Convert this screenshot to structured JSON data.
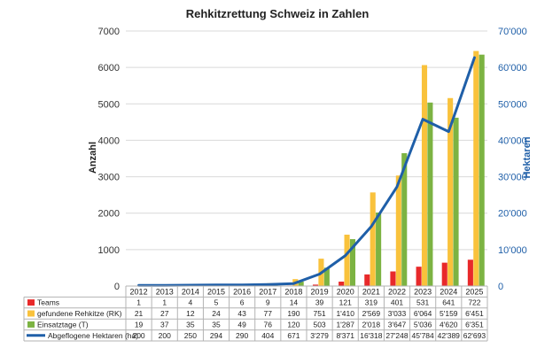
{
  "chart_data": {
    "type": "bar",
    "title": "Rehkitzrettung Schweiz in Zahlen",
    "ylabel": "Anzahl",
    "y2label": "Hektaren",
    "ylim": [
      0,
      7000
    ],
    "y2lim": [
      0,
      70000
    ],
    "yticks": [
      "0",
      "1000",
      "2000",
      "3000",
      "4000",
      "5000",
      "6000",
      "7000"
    ],
    "y2ticks": [
      "0",
      "10'000",
      "20'000",
      "30'000",
      "40'000",
      "50'000",
      "60'000",
      "70'000"
    ],
    "grid": true,
    "categories": [
      "2012",
      "2013",
      "2014",
      "2015",
      "2016",
      "2017",
      "2018",
      "2019",
      "2020",
      "2021",
      "2022",
      "2023",
      "2024",
      "2025"
    ],
    "series": [
      {
        "name": "Teams",
        "type": "bar",
        "axis": "left",
        "color": "#e8292a",
        "values": [
          1,
          1,
          4,
          5,
          6,
          9,
          14,
          39,
          121,
          319,
          401,
          531,
          641,
          722
        ],
        "labels": [
          "1",
          "1",
          "4",
          "5",
          "6",
          "9",
          "14",
          "39",
          "121",
          "319",
          "401",
          "531",
          "641",
          "722"
        ]
      },
      {
        "name": "gefundene Rehkitze (RK)",
        "type": "bar",
        "axis": "left",
        "color": "#f9c23c",
        "values": [
          21,
          27,
          12,
          24,
          43,
          77,
          190,
          751,
          1410,
          2569,
          3033,
          6064,
          5159,
          6451
        ],
        "labels": [
          "21",
          "27",
          "12",
          "24",
          "43",
          "77",
          "190",
          "751",
          "1'410",
          "2'569",
          "3'033",
          "6'064",
          "5'159",
          "6'451"
        ]
      },
      {
        "name": "Einsatztage (T)",
        "type": "bar",
        "axis": "left",
        "color": "#7cb342",
        "values": [
          19,
          37,
          35,
          35,
          49,
          76,
          120,
          503,
          1287,
          2018,
          3647,
          5036,
          4620,
          6351
        ],
        "labels": [
          "19",
          "37",
          "35",
          "35",
          "49",
          "76",
          "120",
          "503",
          "1'287",
          "2'018",
          "3'647",
          "5'036",
          "4'620",
          "6'351"
        ]
      },
      {
        "name": "Abgeflogene Hektaren (ha)",
        "type": "line",
        "axis": "right",
        "color": "#1f5fa8",
        "values": [
          200,
          200,
          250,
          294,
          290,
          404,
          671,
          3279,
          8371,
          16318,
          27248,
          45784,
          42389,
          62693
        ],
        "labels": [
          "200",
          "200",
          "250",
          "294",
          "290",
          "404",
          "671",
          "3'279",
          "8'371",
          "16'318",
          "27'248",
          "45'784",
          "42'389",
          "62'693"
        ]
      }
    ],
    "colors": {
      "grid": "#d9d9d9",
      "axis_right": "#1f5fa8",
      "text": "#222222"
    }
  }
}
